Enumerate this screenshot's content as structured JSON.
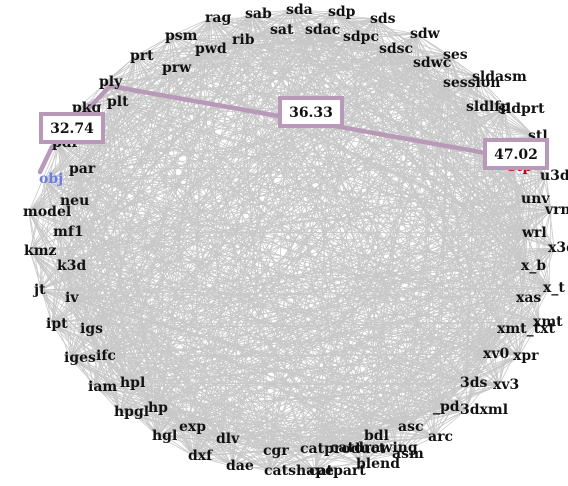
{
  "nodes": [
    "sab",
    "sda",
    "sdp",
    "sds",
    "sdw",
    "ses",
    "sldasm",
    "sldlfp",
    "sldprt",
    "stl",
    "stp",
    "u3d",
    "unv",
    "vrml",
    "wrl",
    "x3d",
    "x_b",
    "x_t",
    "xas",
    "xmt",
    "xmt_txt",
    "xpr",
    "xv0",
    "xv3",
    "3ds",
    "3dxml",
    "_pd",
    "arc",
    "asc",
    "asm",
    "bdl",
    "blend",
    "catdrawing",
    "catpart",
    "catproduct",
    "catshape",
    "cgr",
    "dae",
    "dlv",
    "dxf",
    "exp",
    "hgl",
    "hp",
    "hpgl",
    "hpl",
    "iam",
    "ifc",
    "iges",
    "igs",
    "ipt",
    "iv",
    "jt",
    "k3d",
    "kmz",
    "mf1",
    "model",
    "neu",
    "obj",
    "par",
    "pkg",
    "plt",
    "ply",
    "pwd",
    "prt",
    "prw",
    "psm",
    "rag",
    "rib",
    "sat",
    "sdac",
    "sdpc",
    "sdsc",
    "sdwc",
    "session",
    "pdf"
  ],
  "path": {
    "source": "obj",
    "target": "stp",
    "edges": [
      {
        "from": "obj",
        "to": "pdf",
        "weight": "32.74"
      },
      {
        "from": "pdf",
        "to": "ply",
        "weight": ""
      },
      {
        "from": "ply",
        "to": "stp",
        "weight": "36.33"
      },
      {
        "from": "stp",
        "to": "stp",
        "weight": "47.02"
      }
    ]
  },
  "colors": {
    "edge": "#c8c8c8",
    "path": "#b89ab8",
    "source_label": "#6a7ee0",
    "target_label": "#c40000"
  }
}
